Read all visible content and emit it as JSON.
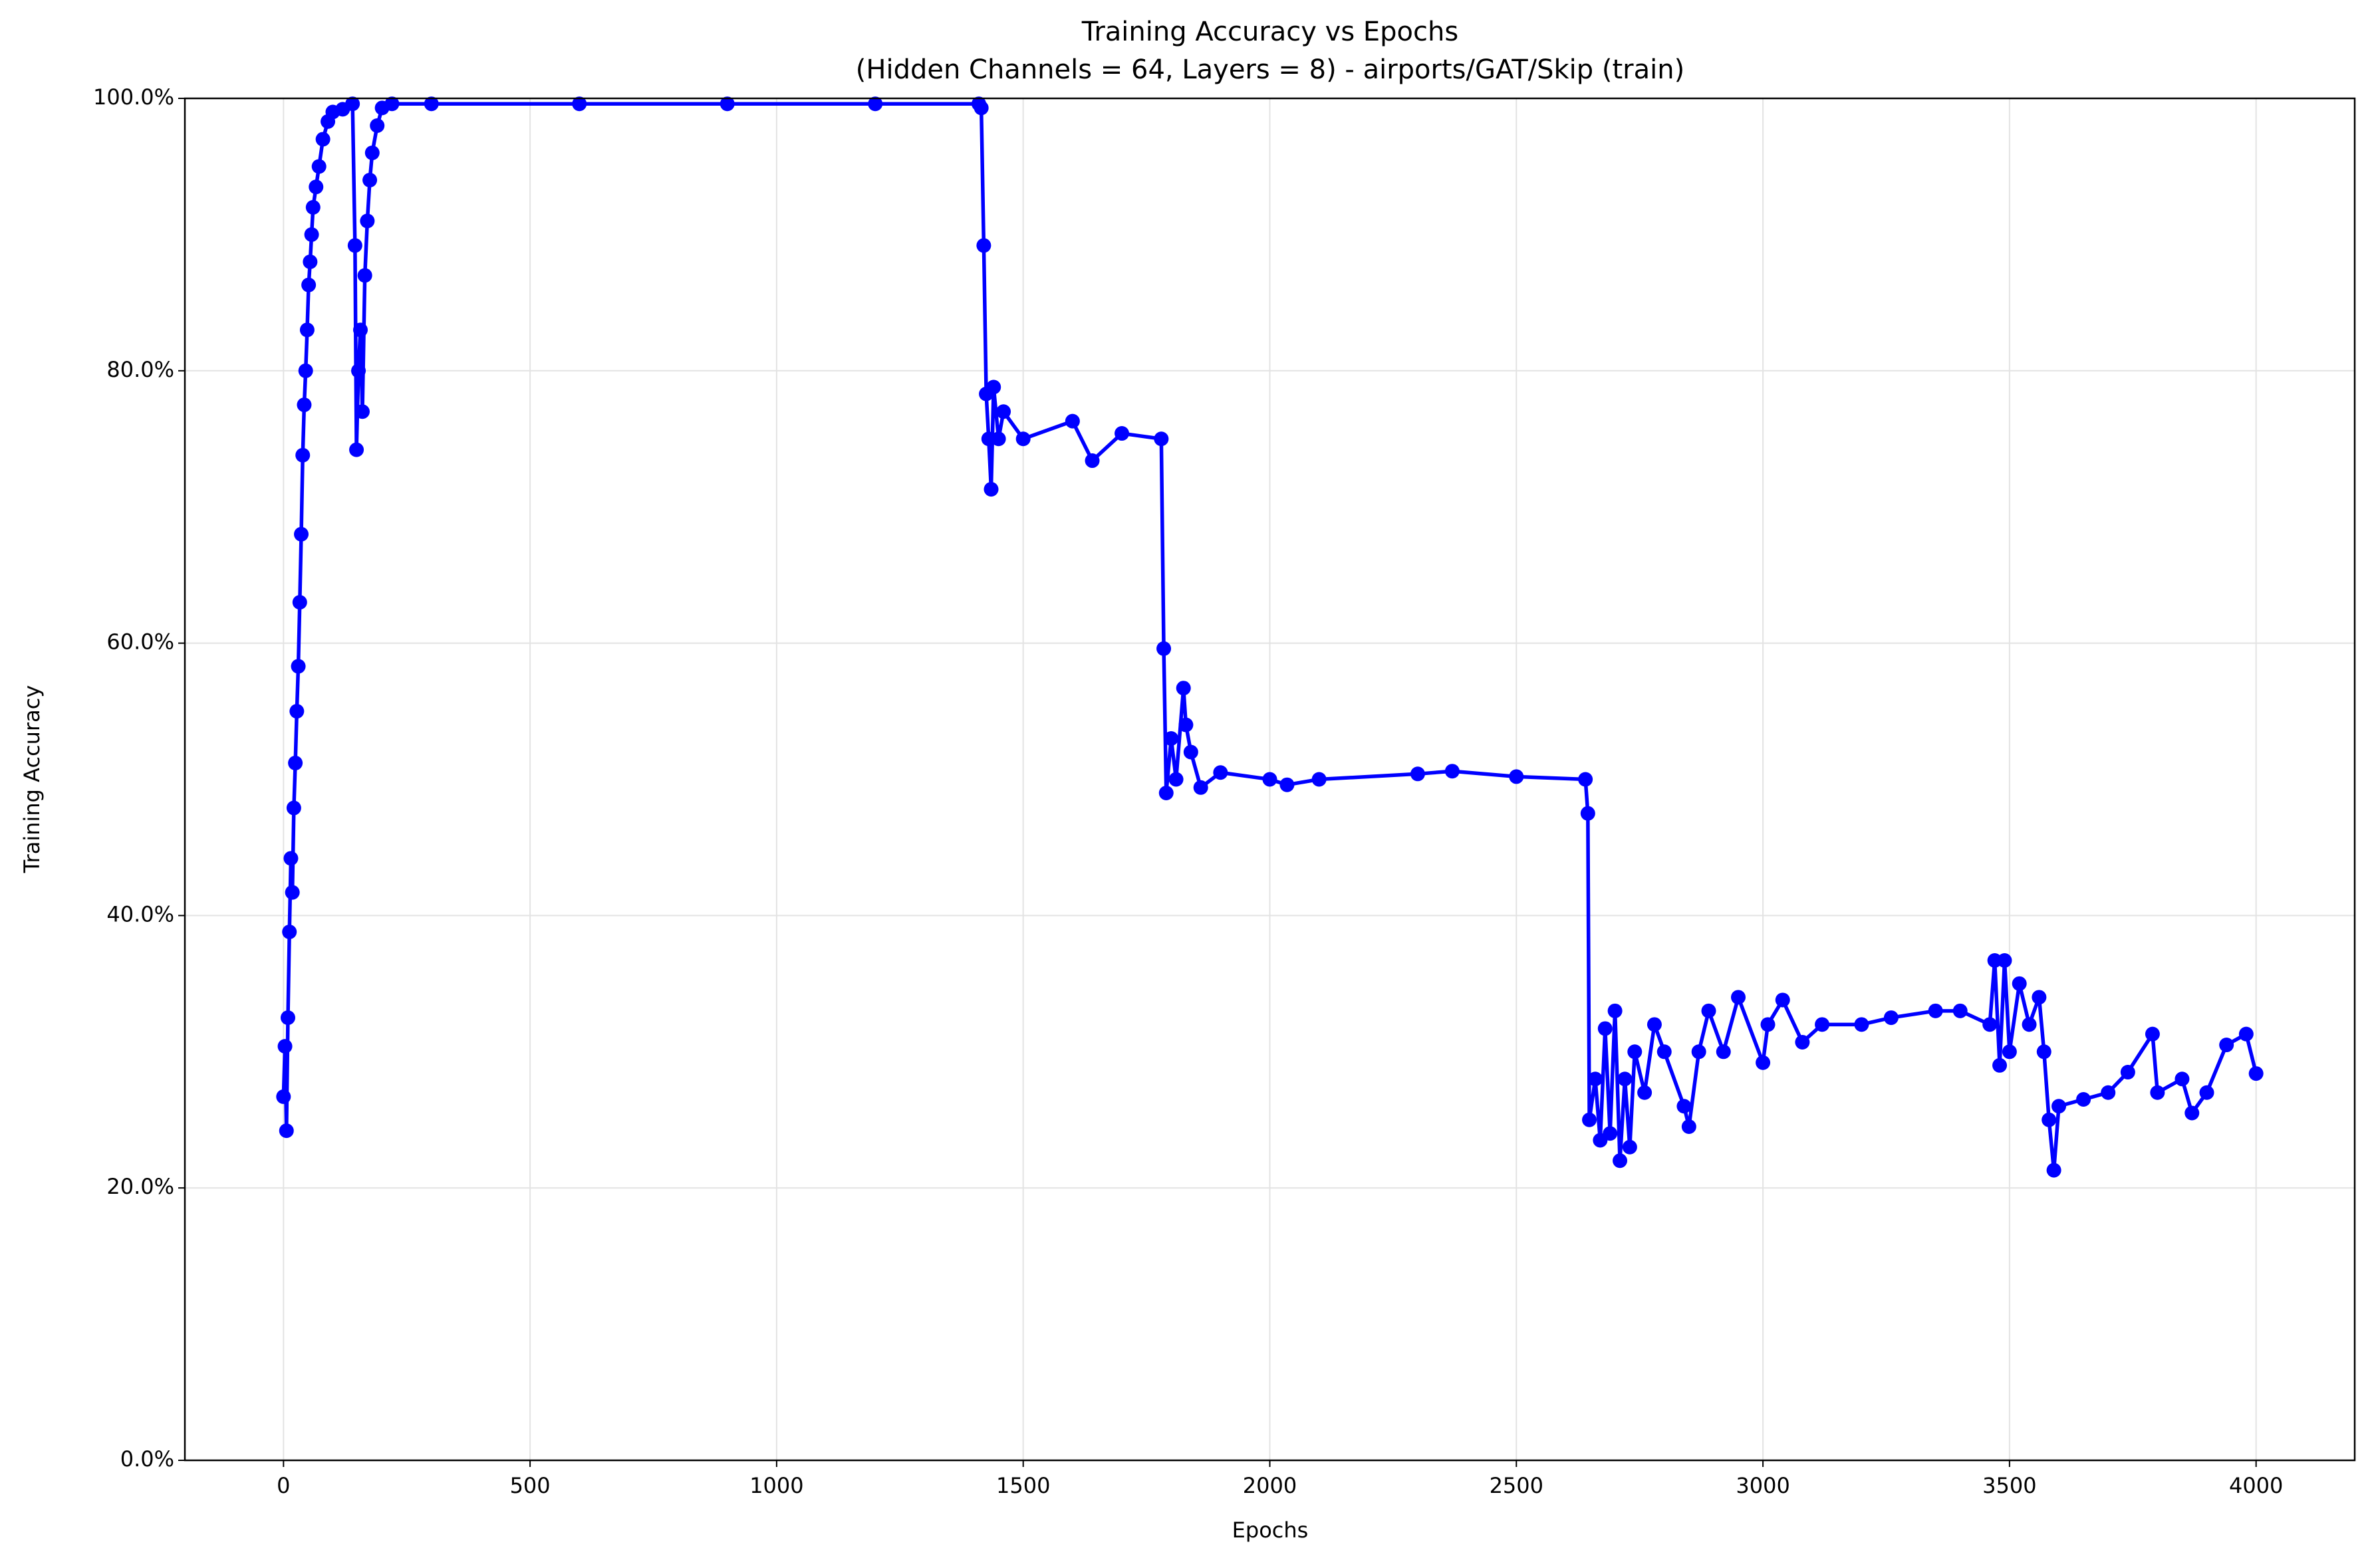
{
  "chart_data": {
    "type": "line",
    "title": "Training Accuracy vs Epochs",
    "subtitle": "(Hidden Channels = 64, Layers = 8) - airports/GAT/Skip (train)",
    "x_label": "Epochs",
    "y_label": "Training Accuracy",
    "xlim": [
      -200,
      4200
    ],
    "ylim": [
      0,
      100
    ],
    "xticks": [
      0,
      500,
      1000,
      1500,
      2000,
      2500,
      3000,
      3500,
      4000
    ],
    "yticks": [
      {
        "value": 0,
        "label": "0.0%"
      },
      {
        "value": 20,
        "label": "20.0%"
      },
      {
        "value": 40,
        "label": "40.0%"
      },
      {
        "value": 60,
        "label": "60.0%"
      },
      {
        "value": 80,
        "label": "80.0%"
      },
      {
        "value": 100,
        "label": "100.0%"
      }
    ],
    "grid": true,
    "markers": true,
    "series": [
      {
        "color": "#0000ff",
        "x": [
          0,
          3,
          6,
          9,
          12,
          15,
          18,
          21,
          24,
          27,
          30,
          33,
          36,
          39,
          42,
          45,
          48,
          51,
          54,
          57,
          60,
          66,
          72,
          80,
          90,
          100,
          120,
          140,
          145,
          148,
          152,
          156,
          160,
          165,
          170,
          175,
          180,
          190,
          200,
          220,
          300,
          600,
          900,
          1200,
          1410,
          1415,
          1420,
          1425,
          1430,
          1435,
          1440,
          1450,
          1460,
          1500,
          1600,
          1640,
          1700,
          1780,
          1785,
          1790,
          1800,
          1810,
          1825,
          1830,
          1840,
          1860,
          1900,
          2000,
          2035,
          2100,
          2300,
          2370,
          2500,
          2640,
          2645,
          2648,
          2660,
          2670,
          2680,
          2690,
          2700,
          2710,
          2720,
          2730,
          2740,
          2760,
          2780,
          2800,
          2840,
          2850,
          2870,
          2890,
          2920,
          2950,
          3000,
          3010,
          3040,
          3080,
          3120,
          3200,
          3260,
          3350,
          3400,
          3460,
          3470,
          3480,
          3490,
          3500,
          3520,
          3540,
          3560,
          3570,
          3580,
          3590,
          3600,
          3650,
          3700,
          3740,
          3790,
          3800,
          3850,
          3870,
          3900,
          3940,
          3980,
          4000
        ],
        "values": [
          26.7,
          30.4,
          24.2,
          32.5,
          38.8,
          44.2,
          41.7,
          47.9,
          51.2,
          55,
          58.3,
          63,
          68,
          73.8,
          77.5,
          80,
          83,
          86.3,
          88,
          90,
          92,
          93.5,
          95,
          97,
          98.3,
          99,
          99.2,
          99.6,
          89.2,
          74.2,
          80,
          83,
          77,
          87,
          91,
          94,
          96,
          98,
          99.3,
          99.6,
          99.6,
          99.6,
          99.6,
          99.6,
          99.6,
          99.3,
          89.2,
          78.3,
          75,
          71.3,
          78.8,
          75,
          77,
          75,
          76.3,
          73.4,
          75.4,
          75,
          59.6,
          49,
          53,
          50,
          56.7,
          54,
          52,
          49.4,
          50.5,
          50,
          49.6,
          50,
          50.4,
          50.6,
          50.2,
          50,
          47.5,
          25,
          28,
          23.5,
          31.7,
          24,
          33,
          22,
          28,
          23,
          30,
          27,
          32,
          30,
          26,
          24.5,
          30,
          33,
          30,
          34,
          29.2,
          32,
          33.8,
          30.7,
          32,
          32,
          32.5,
          33,
          33,
          32,
          36.7,
          29,
          36.7,
          30,
          35,
          32,
          34,
          30,
          25,
          21.3,
          26,
          26.5,
          27,
          28.5,
          31.3,
          27,
          28,
          25.5,
          27,
          30.5,
          31.3,
          28.4
        ]
      }
    ]
  }
}
